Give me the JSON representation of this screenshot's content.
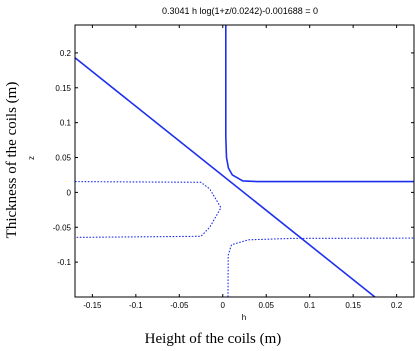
{
  "chart_data": {
    "type": "line",
    "title": "0.3041 h log(1+z/0.0242)-0.001688 = 0",
    "xlabel": "Height of the coils  (m)",
    "ylabel": "Thickness of the coils    (m)",
    "x_variable": "h",
    "y_variable": "z",
    "xlim": [
      -0.17,
      0.22
    ],
    "ylim": [
      -0.15,
      0.24
    ],
    "x_ticks": [
      -0.15,
      -0.1,
      -0.05,
      0,
      0.05,
      0.1,
      0.15,
      0.2
    ],
    "x_tick_labels": [
      "-0.15",
      "-0.1",
      "-0.05",
      "0",
      "0.05",
      "0.1",
      "0.15",
      "0.2"
    ],
    "y_ticks": [
      -0.1,
      -0.05,
      0,
      0.05,
      0.1,
      0.15,
      0.2
    ],
    "y_tick_labels": [
      "-0.1",
      "-0.05",
      "0",
      "0.05",
      "0.1",
      "0.15",
      "0.2"
    ],
    "grid": false,
    "line_color": "#1f2ff0",
    "series": [
      {
        "style": "solid",
        "points": [
          [
            -0.17,
            0.193
          ],
          [
            0.175,
            -0.15
          ]
        ]
      },
      {
        "style": "solid",
        "points": [
          [
            0.0035,
            0.24
          ],
          [
            0.0035,
            0.08
          ],
          [
            0.0043,
            0.05
          ],
          [
            0.0065,
            0.035
          ],
          [
            0.011,
            0.025
          ],
          [
            0.023,
            0.0165
          ],
          [
            0.04,
            0.0155
          ],
          [
            0.22,
            0.0155
          ]
        ]
      },
      {
        "style": "dotted",
        "points": [
          [
            -0.17,
            0.0155
          ],
          [
            -0.025,
            0.0145
          ],
          [
            -0.015,
            0.005
          ],
          [
            -0.002,
            -0.022
          ],
          [
            -0.015,
            -0.05
          ],
          [
            -0.025,
            -0.063
          ],
          [
            -0.17,
            -0.0645
          ]
        ]
      },
      {
        "style": "dotted",
        "points": [
          [
            0.006,
            -0.15
          ],
          [
            0.0062,
            -0.09
          ],
          [
            0.01,
            -0.075
          ],
          [
            0.03,
            -0.068
          ],
          [
            0.08,
            -0.066
          ],
          [
            0.22,
            -0.0655
          ]
        ]
      }
    ]
  }
}
